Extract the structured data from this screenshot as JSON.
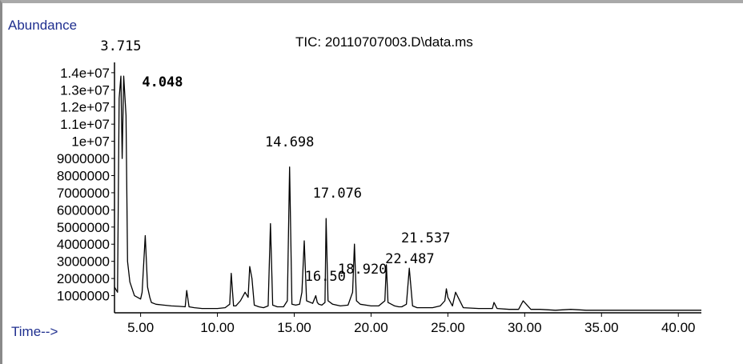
{
  "chart_data": {
    "type": "line",
    "title": "TIC: 20110707003.D\\data.ms",
    "ylabel": "Abundance",
    "xlabel": "Time-->",
    "xlim": [
      3.3,
      41.5
    ],
    "ylim": [
      0,
      14600000
    ],
    "x_ticks": [
      5,
      10,
      15,
      20,
      25,
      30,
      35,
      40
    ],
    "x_tick_labels": [
      "5.00",
      "10.00",
      "15.00",
      "20.00",
      "25.00",
      "30.00",
      "35.00",
      "40.00"
    ],
    "y_ticks": [
      1000000,
      2000000,
      3000000,
      4000000,
      5000000,
      6000000,
      7000000,
      8000000,
      9000000,
      10000000,
      11000000,
      12000000,
      13000000,
      14000000
    ],
    "y_tick_labels": [
      "1000000",
      "2000000",
      "3000000",
      "4000000",
      "5000000",
      "6000000",
      "7000000",
      "8000000",
      "9000000",
      "1e+07",
      "1.1e+07",
      "1.2e+07",
      "1.3e+07",
      "1.4e+07"
    ],
    "grid": false,
    "series": [
      {
        "x": [
          3.3,
          3.5,
          3.6,
          3.715,
          3.8,
          3.9,
          4.048,
          4.15,
          4.3,
          4.6,
          5.0,
          5.1,
          5.3,
          5.45,
          5.6,
          5.7,
          6.0,
          6.5,
          7.0,
          7.5,
          7.9,
          8.0,
          8.15,
          8.5,
          9.0,
          9.5,
          10.0,
          10.5,
          10.8,
          10.9,
          11.05,
          11.2,
          11.5,
          11.8,
          12.0,
          12.1,
          12.25,
          12.4,
          12.7,
          13.0,
          13.3,
          13.45,
          13.6,
          13.9,
          14.3,
          14.55,
          14.698,
          14.85,
          15.1,
          15.35,
          15.5,
          15.65,
          15.8,
          16.2,
          16.4,
          16.5,
          16.6,
          16.8,
          17.0,
          17.076,
          17.2,
          17.5,
          18.0,
          18.5,
          18.8,
          18.92,
          19.05,
          19.3,
          20.0,
          20.5,
          20.9,
          21.0,
          21.1,
          21.537,
          21.8,
          22.0,
          22.3,
          22.487,
          22.7,
          23.0,
          23.5,
          24.0,
          24.5,
          24.8,
          24.9,
          25.0,
          25.3,
          25.5,
          26.0,
          27.0,
          27.9,
          28.0,
          28.2,
          29.0,
          29.6,
          29.9,
          30.1,
          30.4,
          31.0,
          32.0,
          33.0,
          34.0,
          35.0,
          36.0,
          37.0,
          38.0,
          39.0,
          40.0,
          41.0,
          41.5
        ],
        "y": [
          1500000,
          1200000,
          12500000,
          13800000,
          9000000,
          13800000,
          11500000,
          3000000,
          1800000,
          1000000,
          800000,
          1200000,
          4500000,
          1500000,
          900000,
          600000,
          500000,
          450000,
          400000,
          380000,
          350000,
          1300000,
          350000,
          300000,
          250000,
          250000,
          250000,
          300000,
          500000,
          2300000,
          400000,
          400000,
          700000,
          1200000,
          900000,
          2700000,
          2000000,
          450000,
          350000,
          300000,
          400000,
          5200000,
          450000,
          350000,
          350000,
          700000,
          8500000,
          500000,
          450000,
          500000,
          1200000,
          4200000,
          700000,
          550000,
          1000000,
          600000,
          500000,
          450000,
          600000,
          5500000,
          700000,
          500000,
          400000,
          450000,
          1200000,
          4000000,
          700000,
          500000,
          400000,
          400000,
          700000,
          2800000,
          600000,
          400000,
          350000,
          350000,
          500000,
          2600000,
          400000,
          300000,
          300000,
          300000,
          400000,
          700000,
          1400000,
          900000,
          400000,
          1200000,
          300000,
          250000,
          250000,
          600000,
          250000,
          200000,
          200000,
          700000,
          500000,
          200000,
          200000,
          150000,
          200000,
          150000,
          150000,
          150000,
          150000,
          150000,
          150000,
          150000,
          150000,
          150000
        ]
      }
    ],
    "peak_labels": [
      {
        "text": "3.715",
        "x": 3.715
      },
      {
        "text": "4.048",
        "x": 4.048
      },
      {
        "text": "14.698",
        "x": 14.698
      },
      {
        "text": "17.076",
        "x": 17.076
      },
      {
        "text": "16.50",
        "x": 16.5
      },
      {
        "text": "18.920",
        "x": 18.92
      },
      {
        "text": "21.537",
        "x": 21.537
      },
      {
        "text": "22.487",
        "x": 22.487
      }
    ]
  }
}
